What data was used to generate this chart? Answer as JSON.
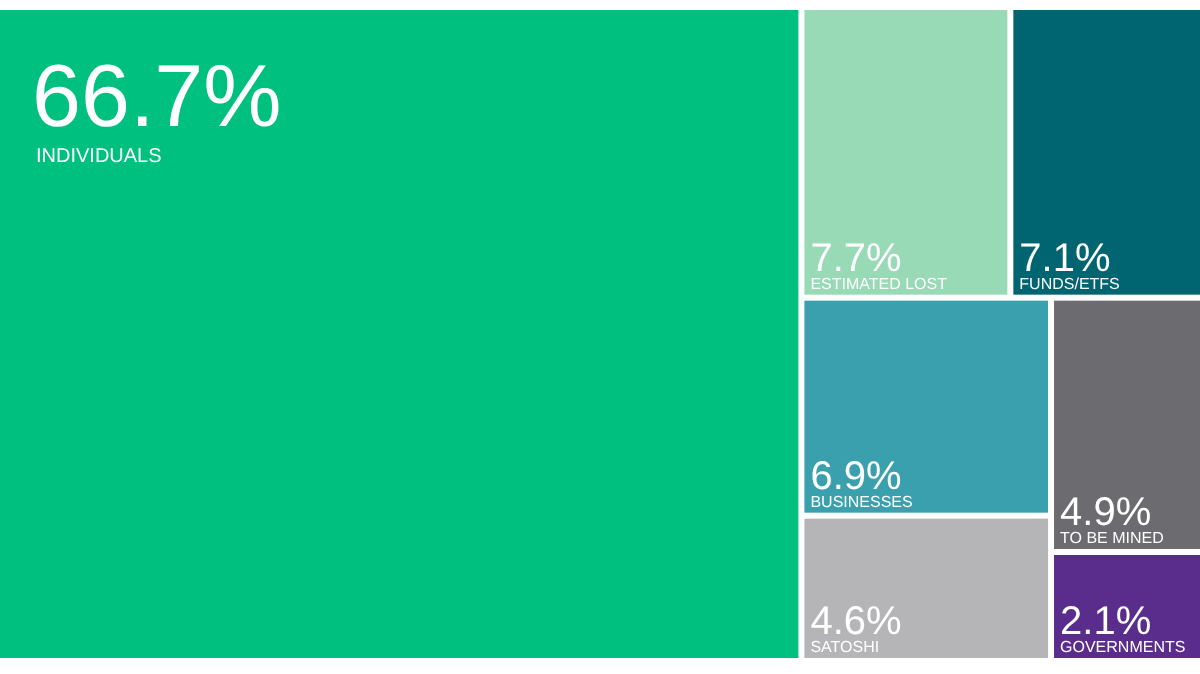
{
  "chart_data": {
    "type": "other",
    "categories": [
      "INDIVIDUALS",
      "ESTIMATED LOST",
      "FUNDS/ETFS",
      "BUSINESSES",
      "SATOSHI",
      "TO BE MINED",
      "GOVERNMENTS"
    ],
    "values": [
      66.7,
      7.7,
      7.1,
      6.9,
      4.6,
      4.9,
      2.1
    ],
    "value_labels": [
      "66.7%",
      "7.7%",
      "7.1%",
      "6.9%",
      "4.6%",
      "4.9%",
      "2.1%"
    ],
    "colors": [
      "#00c07f",
      "#98d9b6",
      "#006570",
      "#3aa0ae",
      "#b5b5b8",
      "#6b6b70",
      "#5a2d8c"
    ]
  }
}
